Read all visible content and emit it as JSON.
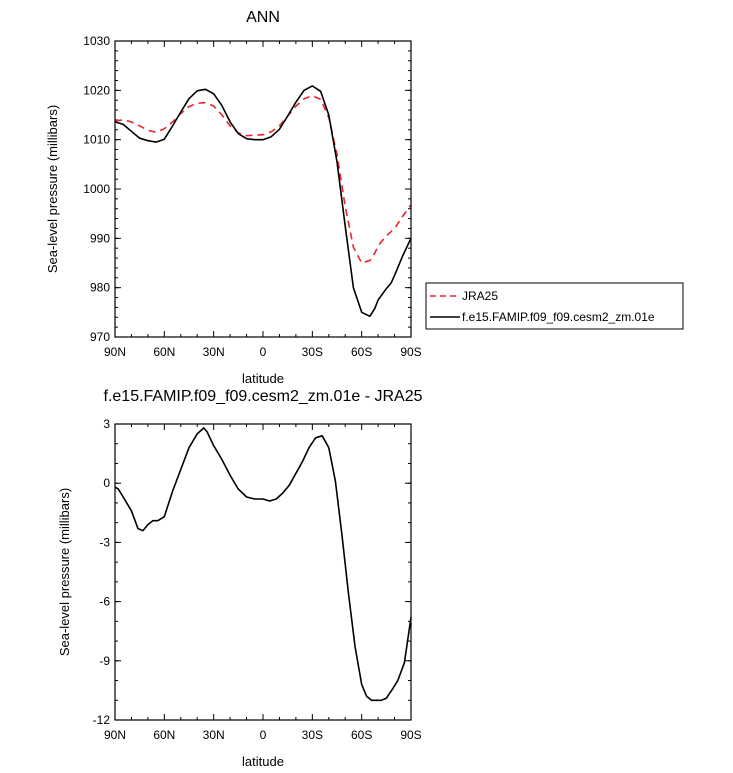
{
  "chart_data": [
    {
      "type": "line",
      "title": "ANN",
      "xlabel": "latitude",
      "ylabel": "Sea-level pressure (millibars)",
      "xlim": [
        -90,
        90
      ],
      "ylim": [
        970,
        1030
      ],
      "xticks": [
        -90,
        -60,
        -30,
        0,
        30,
        60,
        90
      ],
      "xtick_labels": [
        "90N",
        "60N",
        "30N",
        "0",
        "30S",
        "60S",
        "90S"
      ],
      "yticks": [
        970,
        980,
        990,
        1000,
        1010,
        1020,
        1030
      ],
      "ytick_labels": [
        "970",
        "980",
        "990",
        "1000",
        "1010",
        "1020",
        "1030"
      ],
      "legend": "right",
      "series": [
        {
          "name": "JRA25",
          "color": "#e8242c",
          "dash": "dashed",
          "x": [
            -90,
            -85,
            -80,
            -75,
            -70,
            -65,
            -60,
            -55,
            -50,
            -45,
            -40,
            -35,
            -30,
            -25,
            -20,
            -15,
            -10,
            -5,
            0,
            5,
            10,
            15,
            20,
            25,
            30,
            35,
            40,
            45,
            50,
            55,
            60,
            65,
            68,
            70,
            75,
            80,
            85,
            90
          ],
          "y": [
            1013.8,
            1014.0,
            1013.6,
            1012.8,
            1011.9,
            1011.5,
            1012.2,
            1013.6,
            1015.3,
            1016.7,
            1017.4,
            1017.5,
            1016.8,
            1015.0,
            1012.8,
            1011.4,
            1010.8,
            1010.9,
            1011.0,
            1011.6,
            1012.8,
            1014.8,
            1016.8,
            1018.3,
            1018.9,
            1018.2,
            1014.5,
            1007.0,
            996.5,
            988.2,
            985.0,
            985.5,
            987.0,
            988.5,
            990.5,
            992.0,
            994.5,
            996.8
          ]
        },
        {
          "name": "f.e15.FAMIP.f09_f09.cesm2_zm.01e",
          "color": "#000000",
          "dash": "solid",
          "x": [
            -90,
            -85,
            -80,
            -75,
            -70,
            -65,
            -60,
            -55,
            -50,
            -45,
            -40,
            -35,
            -30,
            -25,
            -20,
            -15,
            -10,
            -5,
            0,
            5,
            10,
            15,
            20,
            25,
            30,
            35,
            40,
            45,
            50,
            55,
            60,
            65,
            68,
            70,
            75,
            78,
            80,
            85,
            90
          ],
          "y": [
            1013.6,
            1013.1,
            1011.7,
            1010.3,
            1009.8,
            1009.5,
            1010.1,
            1012.8,
            1015.6,
            1018.3,
            1019.9,
            1020.2,
            1019.3,
            1016.9,
            1013.6,
            1011.2,
            1010.2,
            1010.0,
            1010.0,
            1010.6,
            1012.1,
            1014.8,
            1017.6,
            1020.0,
            1020.9,
            1019.8,
            1015.0,
            1005.5,
            992.5,
            980.0,
            975.0,
            974.2,
            975.8,
            977.5,
            979.8,
            981.0,
            982.5,
            986.5,
            990.0
          ]
        }
      ]
    },
    {
      "type": "line",
      "title": "f.e15.FAMIP.f09_f09.cesm2_zm.01e - JRA25",
      "xlabel": "latitude",
      "ylabel": "Sea-level pressure (millibars)",
      "xlim": [
        -90,
        90
      ],
      "ylim": [
        -12,
        3
      ],
      "xticks": [
        -90,
        -60,
        -30,
        0,
        30,
        60,
        90
      ],
      "xtick_labels": [
        "90N",
        "60N",
        "30N",
        "0",
        "30S",
        "60S",
        "90S"
      ],
      "yticks": [
        -12,
        -9,
        -6,
        -3,
        0,
        3
      ],
      "ytick_labels": [
        "-12",
        "-9",
        "-6",
        "-3",
        "0",
        "3"
      ],
      "series": [
        {
          "color": "#000000",
          "dash": "solid",
          "x": [
            -90,
            -88,
            -85,
            -80,
            -76,
            -73,
            -70,
            -67,
            -64,
            -60,
            -55,
            -50,
            -45,
            -40,
            -36,
            -34,
            -30,
            -25,
            -20,
            -15,
            -10,
            -5,
            0,
            4,
            8,
            12,
            16,
            20,
            24,
            28,
            32,
            36,
            40,
            44,
            48,
            52,
            56,
            60,
            63,
            66,
            70,
            72,
            75,
            79,
            82,
            86,
            90
          ],
          "y": [
            -0.2,
            -0.3,
            -0.7,
            -1.4,
            -2.3,
            -2.4,
            -2.1,
            -1.9,
            -1.9,
            -1.7,
            -0.4,
            0.7,
            1.8,
            2.5,
            2.8,
            2.6,
            1.9,
            1.2,
            0.4,
            -0.3,
            -0.7,
            -0.8,
            -0.8,
            -0.9,
            -0.8,
            -0.5,
            -0.1,
            0.5,
            1.1,
            1.8,
            2.3,
            2.4,
            1.8,
            0.1,
            -2.6,
            -5.6,
            -8.3,
            -10.2,
            -10.8,
            -11.0,
            -11.0,
            -11.0,
            -10.9,
            -10.4,
            -10.0,
            -9.1,
            -6.8
          ]
        }
      ]
    }
  ]
}
